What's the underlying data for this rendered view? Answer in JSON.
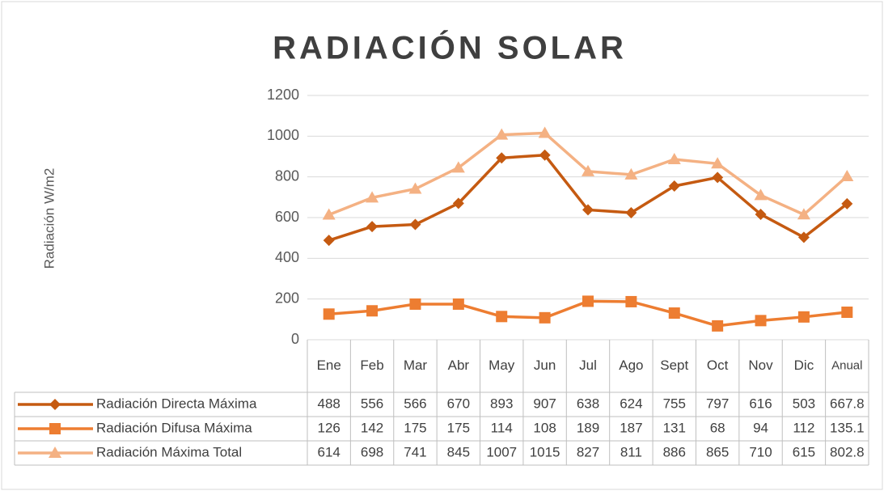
{
  "chart_data": {
    "type": "line",
    "title": "RADIACIÓN SOLAR",
    "y_label": "Radiación W/m2",
    "categories": [
      "Ene",
      "Feb",
      "Mar",
      "Abr",
      "May",
      "Jun",
      "Jul",
      "Ago",
      "Sept",
      "Oct",
      "Nov",
      "Dic",
      "Anual"
    ],
    "series": [
      {
        "name": "Radiación Directa Máxima",
        "color": "#c55a11",
        "marker": "diamond",
        "values": [
          488,
          556,
          566,
          670,
          893,
          907,
          638,
          624,
          755,
          797,
          616,
          503,
          667.8
        ]
      },
      {
        "name": "Radiación Difusa Máxima",
        "color": "#ed7d31",
        "marker": "square",
        "values": [
          126,
          142,
          175,
          175,
          114,
          108,
          189,
          187,
          131,
          68,
          94,
          112,
          135.1
        ]
      },
      {
        "name": "Radiación Máxima Total",
        "color": "#f4b183",
        "marker": "triangle",
        "values": [
          614,
          698,
          741,
          845,
          1007,
          1015,
          827,
          811,
          886,
          865,
          710,
          615,
          802.8
        ]
      }
    ],
    "ylim": [
      0,
      1200
    ],
    "yticks": [
      0,
      200,
      400,
      600,
      800,
      1000,
      1200
    ],
    "grid": true,
    "data_table": true
  }
}
